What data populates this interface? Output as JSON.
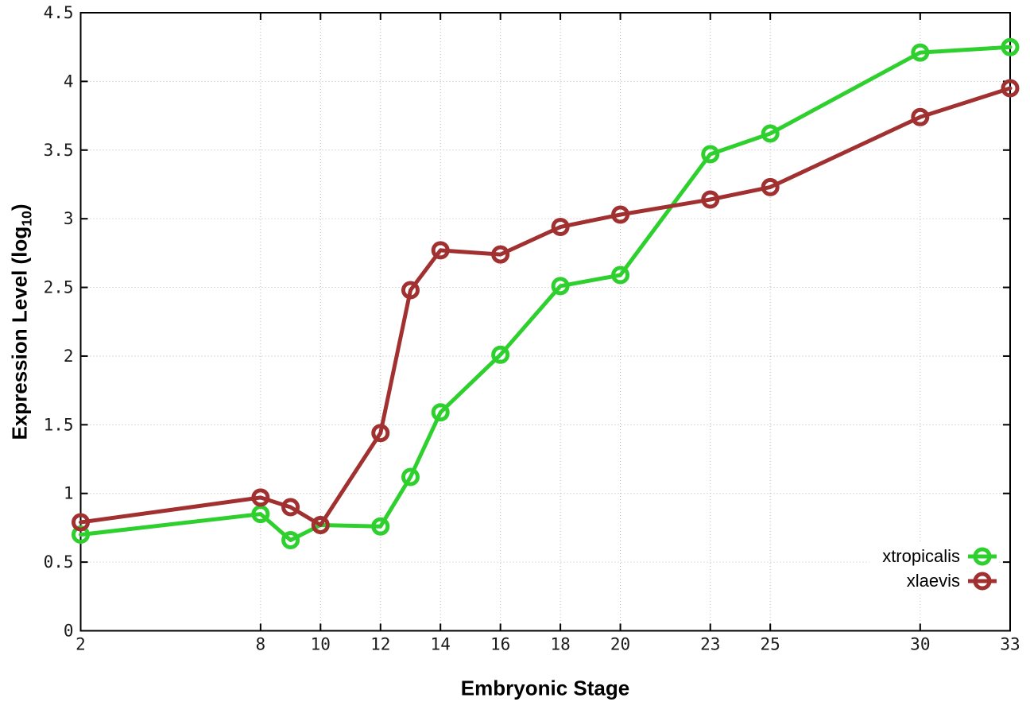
{
  "chart_data": {
    "type": "line",
    "xlabel": "Embryonic Stage",
    "ylabel": "Expression Level (log10)",
    "ylabel_parts": {
      "prefix": "Expression Level (log",
      "sub": "10",
      "suffix": ")"
    },
    "xlim": [
      2,
      33
    ],
    "ylim": [
      0,
      4.5
    ],
    "grid": true,
    "legend_position": "inside-bottom-right",
    "x": [
      2,
      8,
      9,
      10,
      12,
      13,
      14,
      16,
      18,
      20,
      23,
      25,
      30,
      33
    ],
    "xtick_values": [
      2,
      8,
      10,
      12,
      14,
      16,
      18,
      20,
      23,
      25,
      30,
      33
    ],
    "xtick_labels": [
      "2",
      "8",
      "10",
      "12",
      "14",
      "16",
      "18",
      "20",
      "23",
      "25",
      "30",
      "33"
    ],
    "ytick_values": [
      0,
      0.5,
      1,
      1.5,
      2,
      2.5,
      3,
      3.5,
      4,
      4.5
    ],
    "ytick_labels": [
      "0",
      "0.5",
      "1",
      "1.5",
      "2",
      "2.5",
      "3",
      "3.5",
      "4",
      "4.5"
    ],
    "series": [
      {
        "name": "xtropicalis",
        "color": "#2ed02e",
        "values": [
          0.7,
          0.85,
          0.66,
          0.77,
          0.76,
          1.12,
          1.59,
          2.01,
          2.51,
          2.59,
          3.47,
          3.62,
          4.21,
          4.25
        ]
      },
      {
        "name": "xlaevis",
        "color": "#a13030",
        "values": [
          0.79,
          0.97,
          0.9,
          0.77,
          1.44,
          2.48,
          2.77,
          2.74,
          2.94,
          3.03,
          3.14,
          3.23,
          3.74,
          3.95
        ]
      }
    ]
  },
  "colors": {
    "background": "#ffffff",
    "border": "#000000",
    "grid": "#b8b8b8",
    "tick_text": "#1a1a1a"
  }
}
